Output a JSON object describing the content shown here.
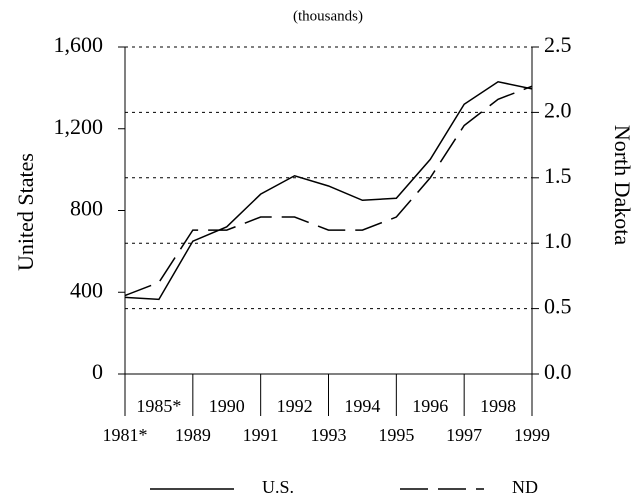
{
  "chart_data": {
    "type": "line",
    "title": "(thousands)",
    "ylabel": "United States",
    "y2label": "North Dakota",
    "categories": [
      "1981*",
      "1985*",
      "1989",
      "1990",
      "1991",
      "1992",
      "1993",
      "1994",
      "1995",
      "1996",
      "1997",
      "1998",
      "1999"
    ],
    "series": [
      {
        "name": "U.S.",
        "color": "#000000",
        "line_style": "solid",
        "values": [
          375,
          365,
          650,
          720,
          880,
          970,
          920,
          850,
          860,
          1050,
          1320,
          1430,
          1395
        ]
      },
      {
        "name": "ND",
        "color": "#000000",
        "line_style": "dashed",
        "axis": "y2",
        "values": [
          0.6,
          0.7,
          1.1,
          1.1,
          1.2,
          1.2,
          1.1,
          1.1,
          1.2,
          1.5,
          1.9,
          2.1,
          2.2
        ]
      }
    ],
    "ylim": [
      0,
      1600
    ],
    "yticks": [
      0,
      {
        "value": 400,
        "label": "400"
      },
      {
        "value": 800,
        "label": "800"
      },
      {
        "value": 1200,
        "label": "1,200"
      },
      {
        "value": 1600,
        "label": "1,600"
      }
    ],
    "y2lim": [
      0,
      2.5
    ],
    "y2ticks": [
      {
        "value": 0,
        "label": "0.0"
      },
      0.5,
      {
        "value": 1,
        "label": "1.0"
      },
      1.5,
      {
        "value": 2,
        "label": "2.0"
      },
      2.5
    ],
    "grid": "y2",
    "legend": "bottom"
  }
}
